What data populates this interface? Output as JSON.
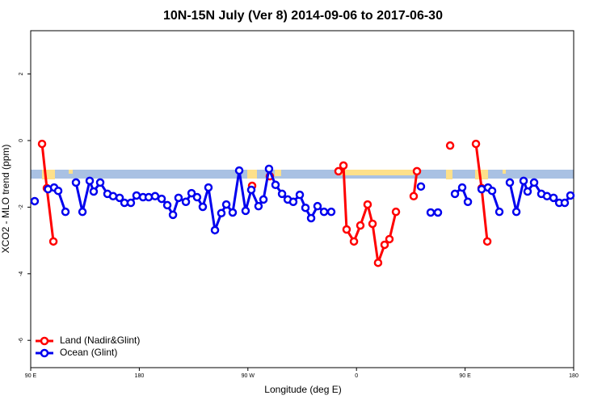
{
  "chart_data": {
    "type": "line",
    "title": "10N-15N July (Ver 8)   2014-09-06 to 2017-06-30",
    "x_label": "Longitude (deg E)",
    "y_label": "XCO2 - MLO trend (ppm)",
    "xlim": [
      90,
      540
    ],
    "ylim": [
      -6.82,
      3.3
    ],
    "xticks": [
      {
        "value": 90,
        "label": "90 E"
      },
      {
        "value": 180,
        "label": "180"
      },
      {
        "value": 270,
        "label": "90 W"
      },
      {
        "value": 360,
        "label": "0"
      },
      {
        "value": 450,
        "label": "90 E"
      },
      {
        "value": 540,
        "label": "180"
      }
    ],
    "yticks": [
      -6,
      -4,
      -2,
      0,
      2
    ],
    "legend": "bottom-left",
    "series": [
      {
        "name": "Land (Nadir&Glint)",
        "color": "#ff0000",
        "x": [
          99.4,
          103.4,
          108.8,
          null,
          273.5,
          null,
          288.2,
          null,
          345.1,
          349.2,
          351.8,
          357.9,
          363.2,
          369.2,
          373.3,
          377.9,
          383.3,
          387.3,
          392.7,
          null,
          407.4,
          410.1,
          null,
          437.6,
          null,
          459.0,
          463.7,
          468.4
        ],
        "values": [
          -0.1,
          -1.43,
          -3.03,
          null,
          -1.36,
          null,
          -1.07,
          null,
          -0.92,
          -0.75,
          -2.67,
          -3.03,
          -2.55,
          -1.92,
          -2.5,
          -3.67,
          -3.13,
          -2.96,
          -2.14,
          null,
          -1.67,
          -0.92,
          null,
          -0.15,
          null,
          -0.1,
          -1.43,
          -3.03
        ]
      },
      {
        "name": "Ocean (Glint)",
        "color": "#0000ee",
        "x": [
          93.3,
          null,
          104.4,
          109.4,
          112.8,
          118.8,
          null,
          127.5,
          132.9,
          138.9,
          142.2,
          147.6,
          153.6,
          158.3,
          163.7,
          167.7,
          173.0,
          177.7,
          183.1,
          187.8,
          193.1,
          198.5,
          203.2,
          207.9,
          212.5,
          218.6,
          223.3,
          227.9,
          232.6,
          237.3,
          242.7,
          248.0,
          252.1,
          257.4,
          262.8,
          268.1,
          272.8,
          278.8,
          282.9,
          287.5,
          292.9,
          298.3,
          303.0,
          307.6,
          313.0,
          317.7,
          322.4,
          327.7,
          333.1,
          339.1,
          null,
          413.4,
          null,
          421.5,
          427.5,
          null,
          441.6,
          447.6,
          452.3,
          null,
          463.7,
          469.0,
          472.4,
          478.4,
          null,
          487.1,
          492.5,
          498.5,
          501.8,
          507.2,
          513.2,
          517.9,
          523.3,
          528.0,
          532.6,
          537.3
        ],
        "values": [
          -1.82,
          null,
          -1.46,
          -1.41,
          -1.51,
          -2.14,
          null,
          -1.26,
          -2.14,
          -1.21,
          -1.53,
          -1.26,
          -1.6,
          -1.67,
          -1.72,
          -1.87,
          -1.87,
          -1.65,
          -1.7,
          -1.7,
          -1.67,
          -1.75,
          -1.94,
          -2.23,
          -1.72,
          -1.84,
          -1.58,
          -1.7,
          -1.99,
          -1.41,
          -2.69,
          -2.18,
          -1.92,
          -2.16,
          -0.9,
          -2.11,
          -1.48,
          -1.97,
          -1.77,
          -0.85,
          -1.33,
          -1.6,
          -1.77,
          -1.84,
          -1.63,
          -2.02,
          -2.33,
          -1.97,
          -2.14,
          -2.14,
          null,
          -1.38,
          null,
          -2.16,
          -2.16,
          null,
          -1.6,
          -1.41,
          -1.84,
          null,
          -1.46,
          -1.41,
          -1.51,
          -2.14,
          null,
          -1.26,
          -2.14,
          -1.21,
          -1.53,
          -1.26,
          -1.6,
          -1.67,
          -1.72,
          -1.87,
          -1.87,
          -1.65
        ]
      }
    ]
  }
}
